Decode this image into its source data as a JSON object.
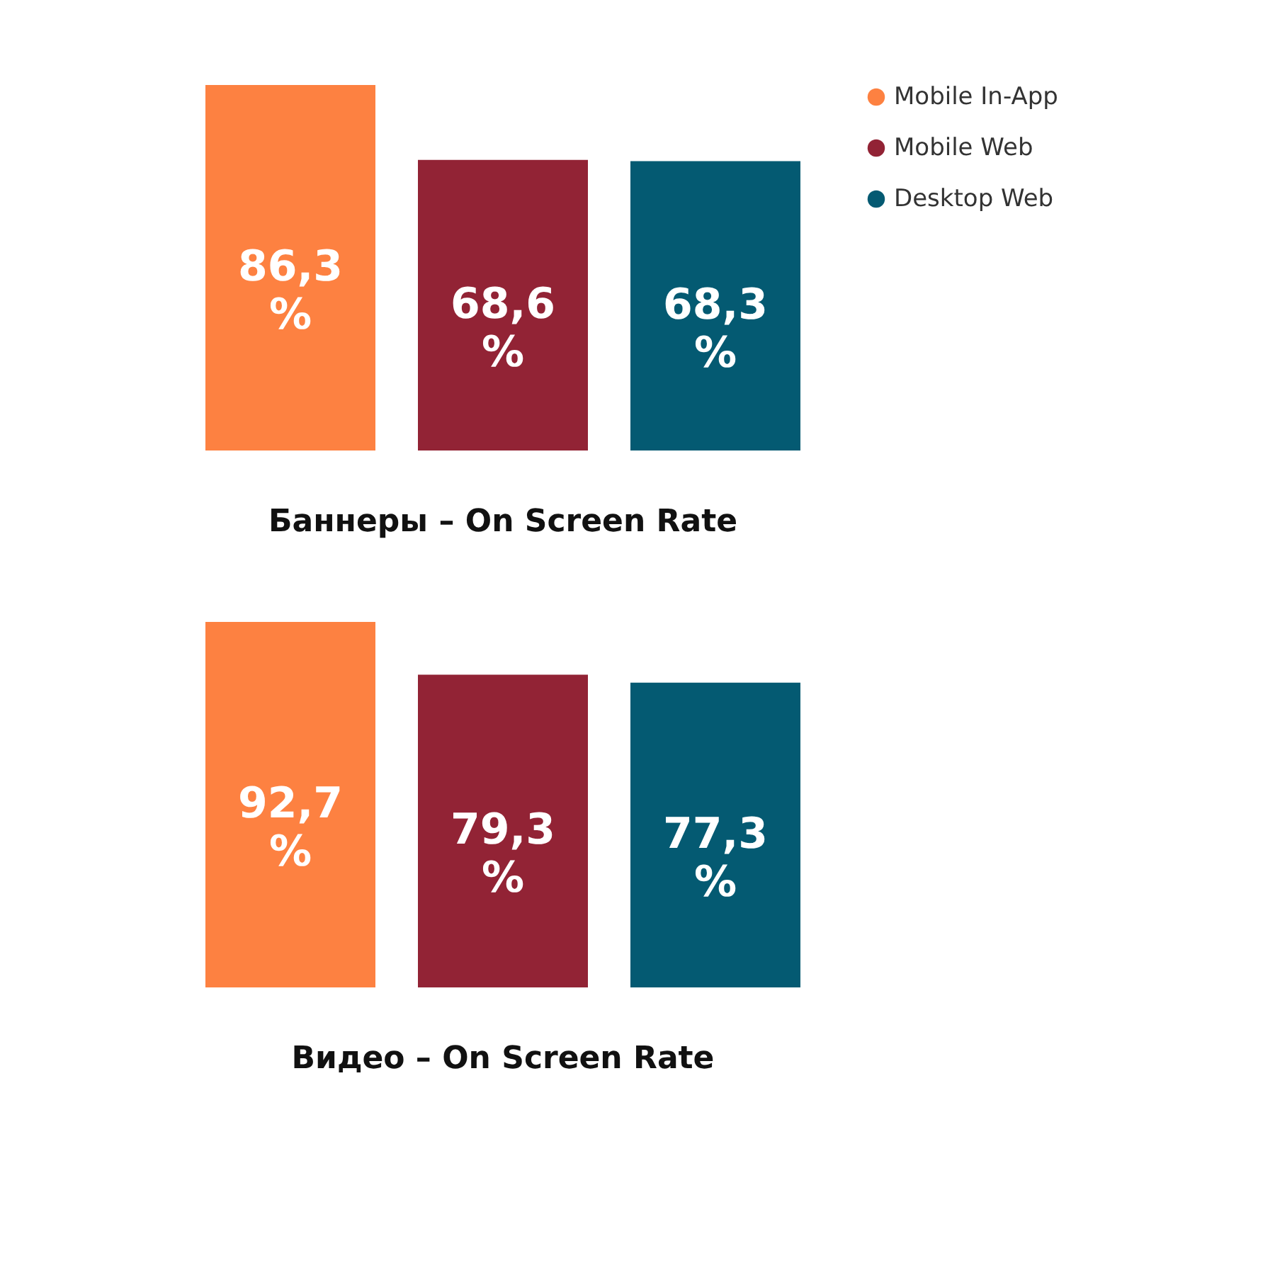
{
  "chart_data": [
    {
      "type": "bar",
      "title": "Баннеры – On Screen Rate",
      "categories": [
        null
      ],
      "tick_labels": false,
      "legend": "right",
      "series": [
        {
          "name": "Mobile In-App",
          "color": "#fd8141",
          "values": [
            86.3
          ],
          "value_labels": [
            "86,3 %"
          ]
        },
        {
          "name": "Mobile Web",
          "color": "#922335",
          "values": [
            68.6
          ],
          "value_labels": [
            "68,6 %"
          ]
        },
        {
          "name": "Desktop Web",
          "color": "#045a72",
          "values": [
            68.3
          ],
          "value_labels": [
            "68,3 %"
          ]
        }
      ]
    },
    {
      "type": "bar",
      "title": "Видео – On Screen Rate",
      "categories": [
        null
      ],
      "tick_labels": false,
      "legend": "right",
      "series": [
        {
          "name": "Mobile In-App",
          "color": "#fd8141",
          "values": [
            92.7
          ],
          "value_labels": [
            "92,7 %"
          ]
        },
        {
          "name": "Mobile Web",
          "color": "#922335",
          "values": [
            79.3
          ],
          "value_labels": [
            "79,3 %"
          ]
        },
        {
          "name": "Desktop Web",
          "color": "#045a72",
          "values": [
            77.3
          ],
          "value_labels": [
            "77,3 %"
          ]
        }
      ]
    }
  ]
}
